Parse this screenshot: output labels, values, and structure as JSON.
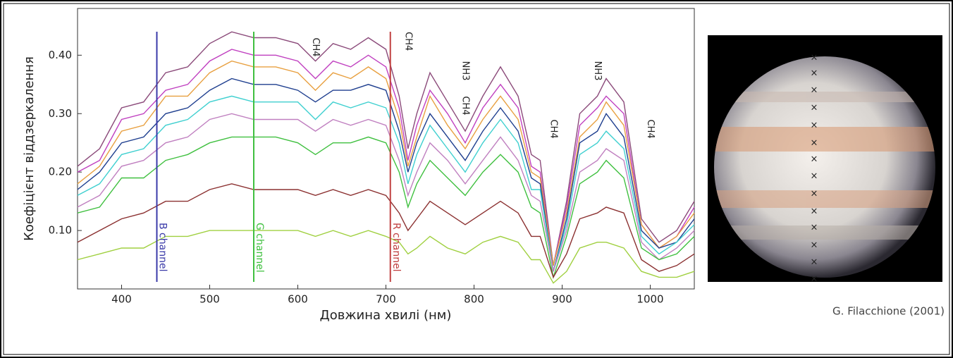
{
  "chart_data": {
    "type": "line",
    "y_label": "Коефіцієнт віддзеркалення",
    "x_label": "Довжина хвилі (нм)",
    "credit": "G. Filacchione (2001)",
    "x": [
      350,
      375,
      400,
      425,
      450,
      475,
      500,
      525,
      550,
      575,
      600,
      620,
      640,
      660,
      680,
      700,
      715,
      725,
      735,
      750,
      770,
      790,
      810,
      830,
      850,
      865,
      875,
      890,
      905,
      920,
      940,
      950,
      970,
      990,
      1010,
      1030,
      1050
    ],
    "series": [
      {
        "color": "#8b4a7a",
        "values": [
          0.21,
          0.24,
          0.31,
          0.32,
          0.37,
          0.38,
          0.42,
          0.44,
          0.43,
          0.43,
          0.42,
          0.39,
          0.42,
          0.41,
          0.43,
          0.41,
          0.33,
          0.24,
          0.3,
          0.37,
          0.32,
          0.27,
          0.33,
          0.38,
          0.33,
          0.23,
          0.22,
          0.04,
          0.15,
          0.3,
          0.33,
          0.36,
          0.32,
          0.12,
          0.08,
          0.1,
          0.15
        ]
      },
      {
        "color": "#c040c0",
        "values": [
          0.2,
          0.22,
          0.29,
          0.3,
          0.34,
          0.35,
          0.39,
          0.41,
          0.4,
          0.4,
          0.39,
          0.36,
          0.39,
          0.38,
          0.4,
          0.38,
          0.31,
          0.22,
          0.28,
          0.34,
          0.3,
          0.25,
          0.31,
          0.35,
          0.31,
          0.21,
          0.2,
          0.04,
          0.14,
          0.28,
          0.31,
          0.33,
          0.3,
          0.11,
          0.07,
          0.09,
          0.14
        ]
      },
      {
        "color": "#e8a040",
        "values": [
          0.18,
          0.21,
          0.27,
          0.28,
          0.33,
          0.33,
          0.37,
          0.39,
          0.38,
          0.38,
          0.37,
          0.34,
          0.37,
          0.36,
          0.38,
          0.36,
          0.29,
          0.21,
          0.26,
          0.33,
          0.28,
          0.24,
          0.29,
          0.33,
          0.29,
          0.2,
          0.19,
          0.04,
          0.13,
          0.26,
          0.29,
          0.32,
          0.28,
          0.11,
          0.07,
          0.09,
          0.13
        ]
      },
      {
        "color": "#1f3f8f",
        "values": [
          0.17,
          0.2,
          0.25,
          0.26,
          0.3,
          0.31,
          0.34,
          0.36,
          0.35,
          0.35,
          0.34,
          0.32,
          0.34,
          0.34,
          0.35,
          0.34,
          0.27,
          0.2,
          0.25,
          0.3,
          0.26,
          0.22,
          0.27,
          0.31,
          0.27,
          0.19,
          0.18,
          0.03,
          0.12,
          0.25,
          0.27,
          0.3,
          0.26,
          0.1,
          0.07,
          0.08,
          0.12
        ]
      },
      {
        "color": "#40d0d0",
        "values": [
          0.16,
          0.18,
          0.23,
          0.24,
          0.28,
          0.29,
          0.32,
          0.33,
          0.32,
          0.32,
          0.32,
          0.29,
          0.32,
          0.31,
          0.32,
          0.31,
          0.25,
          0.18,
          0.23,
          0.28,
          0.24,
          0.2,
          0.25,
          0.29,
          0.25,
          0.17,
          0.17,
          0.03,
          0.11,
          0.23,
          0.25,
          0.27,
          0.24,
          0.09,
          0.06,
          0.08,
          0.11
        ]
      },
      {
        "color": "#c080c0",
        "values": [
          0.14,
          0.16,
          0.21,
          0.22,
          0.25,
          0.26,
          0.29,
          0.3,
          0.29,
          0.29,
          0.29,
          0.27,
          0.29,
          0.28,
          0.29,
          0.28,
          0.22,
          0.16,
          0.2,
          0.25,
          0.22,
          0.18,
          0.22,
          0.26,
          0.22,
          0.16,
          0.15,
          0.03,
          0.1,
          0.2,
          0.22,
          0.24,
          0.22,
          0.08,
          0.05,
          0.07,
          0.1
        ]
      },
      {
        "color": "#40c040",
        "values": [
          0.13,
          0.14,
          0.19,
          0.19,
          0.22,
          0.23,
          0.25,
          0.26,
          0.26,
          0.26,
          0.25,
          0.23,
          0.25,
          0.25,
          0.26,
          0.25,
          0.2,
          0.14,
          0.18,
          0.22,
          0.19,
          0.16,
          0.2,
          0.23,
          0.2,
          0.14,
          0.13,
          0.02,
          0.09,
          0.18,
          0.2,
          0.22,
          0.19,
          0.07,
          0.05,
          0.06,
          0.09
        ]
      },
      {
        "color": "#8b3030",
        "values": [
          0.08,
          0.1,
          0.12,
          0.13,
          0.15,
          0.15,
          0.17,
          0.18,
          0.17,
          0.17,
          0.17,
          0.16,
          0.17,
          0.16,
          0.17,
          0.16,
          0.13,
          0.1,
          0.12,
          0.15,
          0.13,
          0.11,
          0.13,
          0.15,
          0.13,
          0.09,
          0.09,
          0.02,
          0.06,
          0.12,
          0.13,
          0.14,
          0.13,
          0.05,
          0.03,
          0.04,
          0.06
        ]
      },
      {
        "color": "#a0d040",
        "values": [
          0.05,
          0.06,
          0.07,
          0.07,
          0.09,
          0.09,
          0.1,
          0.1,
          0.1,
          0.1,
          0.1,
          0.09,
          0.1,
          0.09,
          0.1,
          0.09,
          0.08,
          0.06,
          0.07,
          0.09,
          0.07,
          0.06,
          0.08,
          0.09,
          0.08,
          0.05,
          0.05,
          0.01,
          0.03,
          0.07,
          0.08,
          0.08,
          0.07,
          0.03,
          0.02,
          0.02,
          0.03
        ]
      }
    ],
    "channels": [
      {
        "label": "B channel",
        "x": 440,
        "color": "#3a3aa8"
      },
      {
        "label": "G channel",
        "x": 550,
        "color": "#40c040"
      },
      {
        "label": "R channel",
        "x": 705,
        "color": "#c04040"
      }
    ],
    "annotations": [
      {
        "text": "CH4",
        "x": 620,
        "y": 0.43
      },
      {
        "text": "CH4",
        "x": 725,
        "y": 0.44
      },
      {
        "text": "CH4",
        "x": 790,
        "y": 0.33
      },
      {
        "text": "NH3",
        "x": 790,
        "y": 0.39
      },
      {
        "text": "CH4",
        "x": 890,
        "y": 0.29
      },
      {
        "text": "NH3",
        "x": 940,
        "y": 0.39
      },
      {
        "text": "CH4",
        "x": 1000,
        "y": 0.29
      }
    ],
    "xlim": [
      350,
      1050
    ],
    "ylim": [
      0,
      0.48
    ],
    "xticks": [
      400,
      500,
      600,
      700,
      800,
      900,
      1000
    ],
    "yticks": [
      {
        "value": 0.1,
        "label": "0.10"
      },
      {
        "value": 0.2,
        "label": "0.20"
      },
      {
        "value": 0.3,
        "label": "0.30"
      },
      {
        "value": 0.4,
        "label": "0.40"
      }
    ],
    "grid": false
  }
}
